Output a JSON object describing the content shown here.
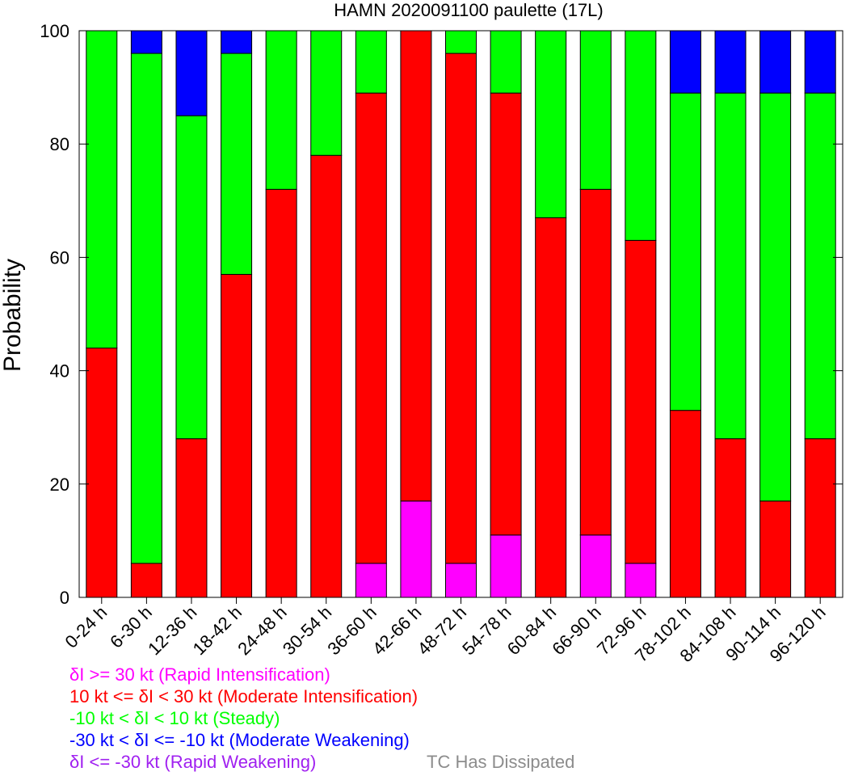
{
  "chart_data": {
    "type": "bar",
    "stacked": true,
    "title": "HAMN 2020091100 paulette (17L)",
    "xlabel": "",
    "ylabel": "Probability",
    "ylim": [
      0,
      100
    ],
    "yticks": [
      0,
      20,
      40,
      60,
      80,
      100
    ],
    "grid": false,
    "categories": [
      "0-24 h",
      "6-30 h",
      "12-36 h",
      "18-42 h",
      "24-48 h",
      "30-54 h",
      "36-60 h",
      "42-66 h",
      "48-72 h",
      "54-78 h",
      "60-84 h",
      "66-90 h",
      "72-96 h",
      "78-102 h",
      "84-108 h",
      "90-114 h",
      "96-120 h"
    ],
    "series": [
      {
        "name": "δI >= 30 kt (Rapid Intensification)",
        "color": "#ff00ff",
        "values": [
          0,
          0,
          0,
          0,
          0,
          0,
          6,
          17,
          6,
          11,
          0,
          11,
          6,
          0,
          0,
          0,
          0
        ]
      },
      {
        "name": "10 kt <= δI < 30 kt (Moderate Intensification)",
        "color": "#ff0000",
        "values": [
          44,
          6,
          28,
          57,
          72,
          78,
          83,
          83,
          90,
          78,
          67,
          61,
          57,
          33,
          28,
          17,
          28
        ]
      },
      {
        "name": "-10 kt < δI < 10 kt (Steady)",
        "color": "#00ff00",
        "values": [
          56,
          90,
          57,
          39,
          28,
          22,
          11,
          0,
          4,
          11,
          33,
          28,
          37,
          56,
          61,
          72,
          61
        ]
      },
      {
        "name": "-30 kt < δI <= -10 kt (Moderate Weakening)",
        "color": "#0000ff",
        "values": [
          0,
          4,
          15,
          4,
          0,
          0,
          0,
          0,
          0,
          0,
          0,
          0,
          0,
          11,
          11,
          11,
          11
        ]
      },
      {
        "name": "δI <= -30 kt (Rapid Weakening)",
        "color": "#a020f0",
        "values": [
          0,
          0,
          0,
          0,
          0,
          0,
          0,
          0,
          0,
          0,
          0,
          0,
          0,
          0,
          0,
          0,
          0
        ]
      }
    ],
    "legend": {
      "placement": "bottom-left",
      "items": [
        {
          "text": "δI >= 30 kt (Rapid Intensification)",
          "color": "#ff00ff"
        },
        {
          "text": "10 kt <= δI < 30 kt (Moderate Intensification)",
          "color": "#ff0000"
        },
        {
          "text": "-10 kt < δI < 10 kt (Steady)",
          "color": "#00ff00"
        },
        {
          "text": "-30 kt < δI <= -10 kt (Moderate Weakening)",
          "color": "#0000ff"
        },
        {
          "text": "δI <= -30 kt (Rapid Weakening)",
          "color": "#a020f0"
        }
      ],
      "dissipated_text": "TC Has Dissipated",
      "dissipated_color": "#8c8c8c"
    }
  }
}
